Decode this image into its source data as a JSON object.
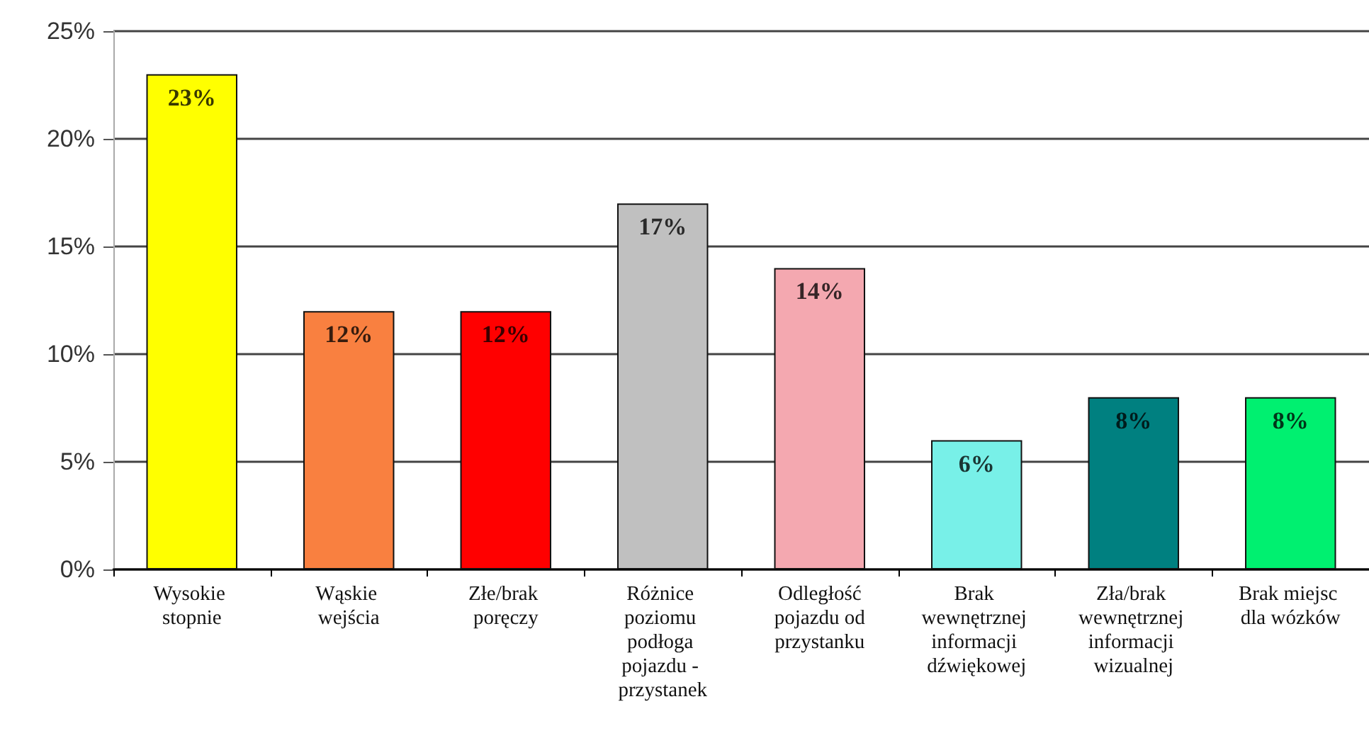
{
  "chart_data": {
    "type": "bar",
    "categories": [
      "Wysokie stopnie",
      "Wąskie wejścia",
      "Złe/brak poręczy",
      "Różnice poziomu podłoga pojazdu - przystanek",
      "Odległość pojazdu od przystanku",
      "Brak wewnętrznej informacji dźwiękowej",
      "Zła/brak wewnętrznej informacji wizualnej",
      "Brak miejsc dla wózków"
    ],
    "values": [
      23,
      12,
      12,
      17,
      14,
      6,
      8,
      8
    ],
    "value_labels": [
      "23%",
      "12%",
      "12%",
      "17%",
      "14%",
      "6%",
      "8%",
      "8%"
    ],
    "colors": [
      "#ffff00",
      "#f98040",
      "#ff0000",
      "#c0c0c0",
      "#f4a8b0",
      "#78f0e8",
      "#008080",
      "#00f070"
    ],
    "ylim": [
      0,
      25
    ],
    "yticks": [
      {
        "value": 0,
        "label": "0%"
      },
      {
        "value": 5,
        "label": "5%"
      },
      {
        "value": 10,
        "label": "10%"
      },
      {
        "value": 15,
        "label": "15%"
      },
      {
        "value": 20,
        "label": "20%"
      },
      {
        "value": 25,
        "label": "25%"
      }
    ],
    "grid": "y"
  }
}
